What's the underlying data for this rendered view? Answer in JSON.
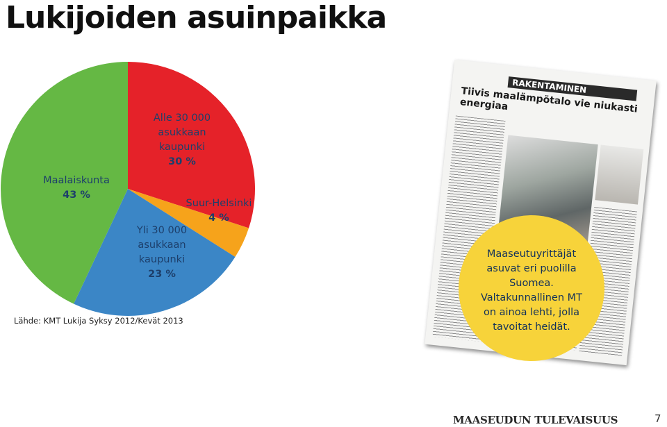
{
  "title": "Lukijoiden asuinpaikka",
  "source": "Lähde: KMT Lukija Syksy 2012/Kevät 2013",
  "chart_data": {
    "type": "pie",
    "title": "Lukijoiden asuinpaikka",
    "slices": [
      {
        "label": "Alle 30 000 asukkaan kaupunki",
        "value": 30,
        "pct_text": "30 %",
        "color": "#e52229"
      },
      {
        "label": "Suur-Helsinki",
        "value": 4,
        "pct_text": "4 %",
        "color": "#f6a31b"
      },
      {
        "label": "Yli 30 000 asukkaan kaupunki",
        "value": 23,
        "pct_text": "23 %",
        "color": "#3b86c6"
      },
      {
        "label": "Maalaiskunta",
        "value": 43,
        "pct_text": "43 %",
        "color": "#65b844"
      }
    ],
    "label_lines": {
      "alle": [
        "Alle 30 000",
        "asukkaan",
        "kaupunki"
      ],
      "suur": [
        "Suur-Helsinki"
      ],
      "yli": [
        "Yli 30 000",
        "asukkaan",
        "kaupunki"
      ],
      "maala": [
        "Maalaiskunta"
      ]
    }
  },
  "newspaper": {
    "section": "RAKENTAMINEN",
    "headline": "Tiivis maalämpötalo vie niukasti energiaa"
  },
  "callout": "Maaseutuyrittäjät\nasuvat eri puolilla\nSuomea.\nValtakunnallinen MT\non ainoa lehti, jolla\ntavoitat heidät.",
  "footer": {
    "brand": "MAASEUDUN TULEVAISUUS",
    "page_number": "7"
  }
}
